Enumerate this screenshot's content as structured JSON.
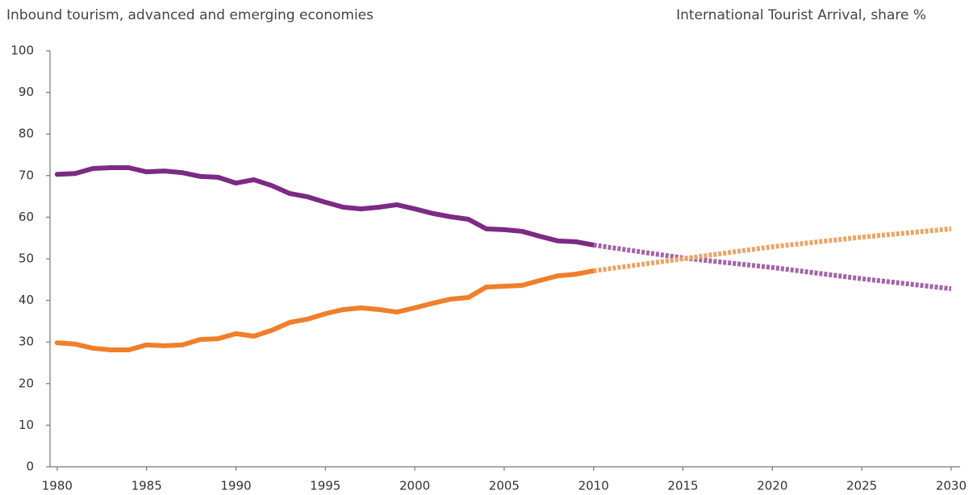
{
  "chart_data": {
    "type": "line",
    "title": "Inbound tourism, advanced and emerging economies",
    "subtitle": "International Tourist Arrival, share %",
    "xlim": [
      1979.6,
      2030.5
    ],
    "xticks": [
      1980,
      1985,
      1990,
      1995,
      2000,
      2005,
      2010,
      2015,
      2020,
      2025,
      2030
    ],
    "ylim": [
      0,
      100
    ],
    "yticks": [
      0,
      10,
      20,
      30,
      40,
      50,
      60,
      70,
      80,
      90,
      100
    ],
    "grid": false,
    "series": [
      {
        "color": "#7b2a85",
        "dashed": false,
        "x": [
          1980,
          1981,
          1982,
          1983,
          1984,
          1985,
          1986,
          1987,
          1988,
          1989,
          1990,
          1991,
          1992,
          1993,
          1994,
          1995,
          1996,
          1997,
          1998,
          1999,
          2000,
          2001,
          2002,
          2003,
          2004,
          2005,
          2006,
          2007,
          2008,
          2009,
          2010
        ],
        "values": [
          70.3,
          70.5,
          71.7,
          71.9,
          71.9,
          70.9,
          71.1,
          70.7,
          69.8,
          69.6,
          68.2,
          69.0,
          67.6,
          65.7,
          64.9,
          63.6,
          62.4,
          62.0,
          62.4,
          63.0,
          62.0,
          60.9,
          60.1,
          59.5,
          57.2,
          57.0,
          56.6,
          55.4,
          54.3,
          54.1,
          53.3
        ]
      },
      {
        "color": "#f07f2a",
        "dashed": false,
        "x": [
          1980,
          1981,
          1982,
          1983,
          1984,
          1985,
          1986,
          1987,
          1988,
          1989,
          1990,
          1991,
          1992,
          1993,
          1994,
          1995,
          1996,
          1997,
          1998,
          1999,
          2000,
          2001,
          2002,
          2003,
          2004,
          2005,
          2006,
          2007,
          2008,
          2009,
          2010
        ],
        "values": [
          29.8,
          29.5,
          28.5,
          28.1,
          28.1,
          29.3,
          29.1,
          29.3,
          30.6,
          30.8,
          32.0,
          31.4,
          32.8,
          34.7,
          35.5,
          36.8,
          37.8,
          38.2,
          37.8,
          37.2,
          38.2,
          39.3,
          40.3,
          40.7,
          43.2,
          43.4,
          43.6,
          44.8,
          45.9,
          46.3,
          47.1
        ]
      },
      {
        "color": "#a363ab",
        "dashed": true,
        "x": [
          2010,
          2015,
          2020,
          2025,
          2030
        ],
        "values": [
          53.3,
          50.2,
          47.9,
          45.2,
          42.8
        ]
      },
      {
        "color": "#e9a565",
        "dashed": true,
        "x": [
          2010,
          2015,
          2020,
          2025,
          2030
        ],
        "values": [
          47.1,
          50.0,
          52.9,
          55.2,
          57.2
        ]
      }
    ]
  }
}
